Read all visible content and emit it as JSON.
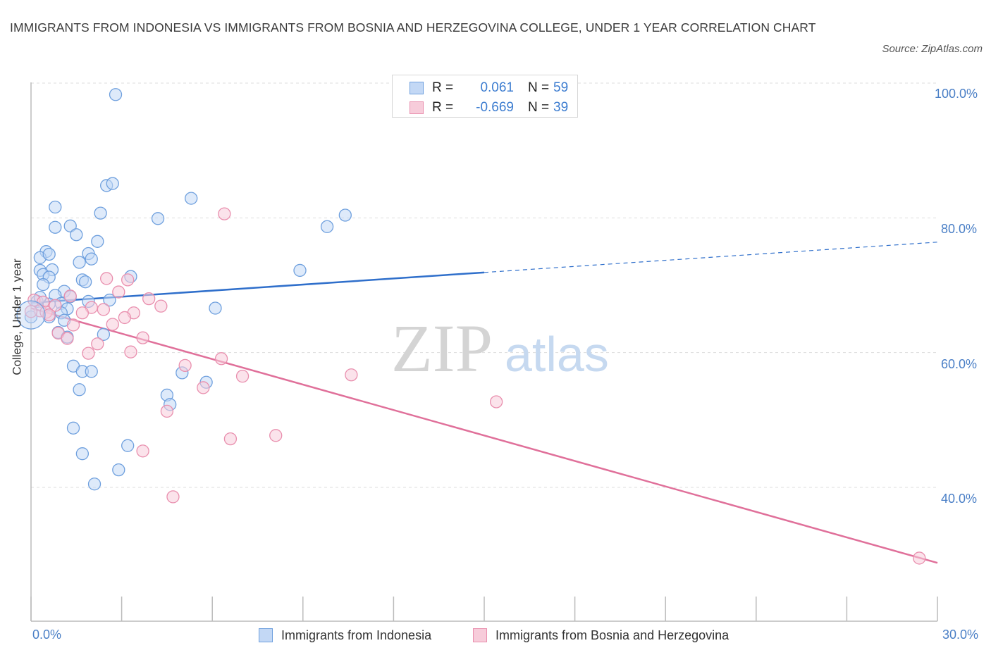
{
  "title": "IMMIGRANTS FROM INDONESIA VS IMMIGRANTS FROM BOSNIA AND HERZEGOVINA COLLEGE, UNDER 1 YEAR CORRELATION CHART",
  "source": "Source: ZipAtlas.com",
  "watermark": {
    "zip": "ZIP",
    "atlas": "atlas"
  },
  "colors": {
    "blue": "#6fa0de",
    "blue_fill": "#c3d8f5",
    "blue_line": "#2f6fcb",
    "pink": "#e98fae",
    "pink_fill": "#f7ccda",
    "pink_line": "#e0709a",
    "axis_label": "#4a7fc6",
    "grid": "#dddddd"
  },
  "legend": {
    "rows": [
      {
        "r_label": "R =",
        "r_value": "0.061",
        "n_label": "N =",
        "n_value": "59"
      },
      {
        "r_label": "R =",
        "r_value": "-0.669",
        "n_label": "N =",
        "n_value": "39"
      }
    ]
  },
  "chart_data": {
    "type": "scatter",
    "title": "IMMIGRANTS FROM INDONESIA VS IMMIGRANTS FROM BOSNIA AND HERZEGOVINA COLLEGE, UNDER 1 YEAR CORRELATION CHART",
    "xlabel": "",
    "ylabel": "College, Under 1 year",
    "xlim": [
      0,
      30
    ],
    "ylim": [
      20,
      100
    ],
    "x_tick_labels": [
      "0.0%",
      "30.0%"
    ],
    "y_tick_labels": [
      "100.0%",
      "80.0%",
      "60.0%",
      "40.0%"
    ],
    "y_ticks": [
      100,
      80,
      60,
      40
    ],
    "grid": true,
    "series": [
      {
        "name": "Immigrants from Indonesia",
        "r": 0.061,
        "n": 59,
        "trend": {
          "x0": 0,
          "y0": 67.4,
          "x1": 15,
          "y1": 71.9,
          "dashed_to_x": 30,
          "dashed_to_y": 76.4
        },
        "points": [
          [
            2.8,
            98.3
          ],
          [
            2.5,
            84.8
          ],
          [
            2.7,
            85.1
          ],
          [
            5.3,
            82.9
          ],
          [
            0.8,
            81.6
          ],
          [
            2.3,
            80.7
          ],
          [
            10.4,
            80.4
          ],
          [
            4.2,
            79.9
          ],
          [
            9.8,
            78.7
          ],
          [
            1.3,
            78.8
          ],
          [
            0.8,
            78.6
          ],
          [
            1.5,
            77.5
          ],
          [
            2.2,
            76.5
          ],
          [
            0.5,
            75.0
          ],
          [
            0.3,
            74.1
          ],
          [
            0.6,
            74.6
          ],
          [
            1.9,
            74.7
          ],
          [
            2.0,
            73.9
          ],
          [
            1.6,
            73.4
          ],
          [
            0.3,
            72.2
          ],
          [
            0.7,
            72.3
          ],
          [
            8.9,
            72.2
          ],
          [
            0.4,
            71.6
          ],
          [
            3.3,
            71.3
          ],
          [
            0.6,
            71.2
          ],
          [
            1.7,
            70.8
          ],
          [
            1.8,
            70.5
          ],
          [
            0.4,
            70.1
          ],
          [
            1.1,
            69.1
          ],
          [
            0.8,
            68.5
          ],
          [
            1.3,
            68.3
          ],
          [
            0.2,
            67.6
          ],
          [
            2.6,
            67.8
          ],
          [
            1.9,
            67.6
          ],
          [
            1.0,
            67.3
          ],
          [
            0.6,
            67.2
          ],
          [
            1.2,
            66.5
          ],
          [
            6.1,
            66.6
          ],
          [
            1.0,
            65.9
          ],
          [
            0.0,
            65.3
          ],
          [
            0.6,
            65.3
          ],
          [
            1.1,
            64.8
          ],
          [
            0.9,
            63.0
          ],
          [
            1.2,
            62.3
          ],
          [
            2.4,
            62.7
          ],
          [
            1.4,
            58.0
          ],
          [
            1.7,
            57.2
          ],
          [
            2.0,
            57.2
          ],
          [
            5.0,
            57.0
          ],
          [
            5.8,
            55.6
          ],
          [
            1.6,
            54.5
          ],
          [
            4.5,
            53.7
          ],
          [
            4.6,
            52.3
          ],
          [
            1.4,
            48.8
          ],
          [
            1.7,
            45.0
          ],
          [
            3.2,
            46.2
          ],
          [
            2.9,
            42.6
          ],
          [
            2.1,
            40.5
          ],
          [
            0.3,
            68.2
          ]
        ]
      },
      {
        "name": "Immigrants from Bosnia and Herzegovina",
        "r": -0.669,
        "n": 39,
        "trend": {
          "x0": 0,
          "y0": 66.6,
          "x1": 30,
          "y1": 28.8
        },
        "points": [
          [
            6.4,
            80.6
          ],
          [
            2.5,
            71.0
          ],
          [
            3.2,
            70.8
          ],
          [
            2.9,
            69.0
          ],
          [
            1.3,
            68.4
          ],
          [
            3.9,
            68.0
          ],
          [
            0.1,
            67.8
          ],
          [
            0.4,
            67.5
          ],
          [
            0.8,
            67.0
          ],
          [
            4.3,
            66.9
          ],
          [
            2.0,
            66.7
          ],
          [
            2.4,
            66.4
          ],
          [
            0.3,
            66.2
          ],
          [
            0.5,
            66.0
          ],
          [
            0.6,
            65.6
          ],
          [
            1.7,
            65.9
          ],
          [
            3.4,
            65.9
          ],
          [
            3.1,
            65.2
          ],
          [
            1.4,
            64.1
          ],
          [
            2.7,
            64.2
          ],
          [
            0.9,
            62.9
          ],
          [
            3.7,
            62.2
          ],
          [
            1.2,
            62.1
          ],
          [
            2.2,
            61.3
          ],
          [
            1.9,
            59.9
          ],
          [
            3.3,
            60.1
          ],
          [
            6.3,
            59.1
          ],
          [
            5.1,
            58.1
          ],
          [
            7.0,
            56.5
          ],
          [
            10.6,
            56.7
          ],
          [
            5.7,
            54.8
          ],
          [
            15.4,
            52.7
          ],
          [
            4.5,
            51.3
          ],
          [
            8.1,
            47.7
          ],
          [
            6.6,
            47.2
          ],
          [
            3.7,
            45.4
          ],
          [
            4.7,
            38.6
          ],
          [
            29.4,
            29.5
          ],
          [
            0.0,
            66.1
          ]
        ]
      }
    ]
  }
}
